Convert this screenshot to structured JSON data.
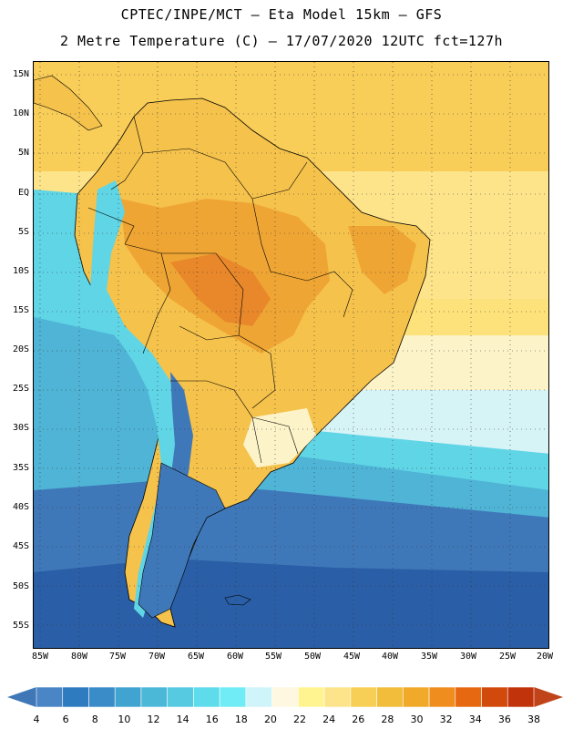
{
  "header": {
    "line1": "CPTEC/INPE/MCT –  Eta Model 15km – GFS",
    "line2": "2 Metre Temperature (C) – 17/07/2020 12UTC fct=127h"
  },
  "map": {
    "region": "South America",
    "lat_labels": [
      "15N",
      "10N",
      "5N",
      "EQ",
      "5S",
      "10S",
      "15S",
      "20S",
      "25S",
      "30S",
      "35S",
      "40S",
      "45S",
      "50S",
      "55S"
    ],
    "lon_labels": [
      "85W",
      "80W",
      "75W",
      "70W",
      "65W",
      "60W",
      "55W",
      "50W",
      "45W",
      "40W",
      "35W",
      "30W",
      "25W",
      "20W"
    ]
  },
  "colorbar": {
    "labels": [
      "4",
      "6",
      "8",
      "10",
      "12",
      "14",
      "16",
      "18",
      "20",
      "22",
      "24",
      "26",
      "28",
      "30",
      "32",
      "34",
      "36",
      "38"
    ],
    "colors": [
      "#4a86c5",
      "#2f7bbf",
      "#3a8cc8",
      "#41a3cf",
      "#4bb8d8",
      "#56cae0",
      "#5fdceb",
      "#6fecf5",
      "#cff5fa",
      "#fdf8df",
      "#fff48f",
      "#fde38a",
      "#f8cf56",
      "#f1bd3a",
      "#f1a92a",
      "#ef8e1e",
      "#e66912",
      "#d24a0b",
      "#c0330b"
    ],
    "low_arrow": "#3f77b7",
    "high_arrow": "#c0431a"
  },
  "palette": {
    "cold_deep": "#2a5ea6",
    "cold": "#3f78b9",
    "cool": "#4fb4d6",
    "mild": "#5fd5e6",
    "cyan_light": "#86e6f1",
    "pale": "#d6f3f6",
    "cream": "#fcf3c8",
    "yellow": "#fde27b",
    "warm": "#f5c24c",
    "orange": "#efa534",
    "hot": "#e8882a"
  }
}
